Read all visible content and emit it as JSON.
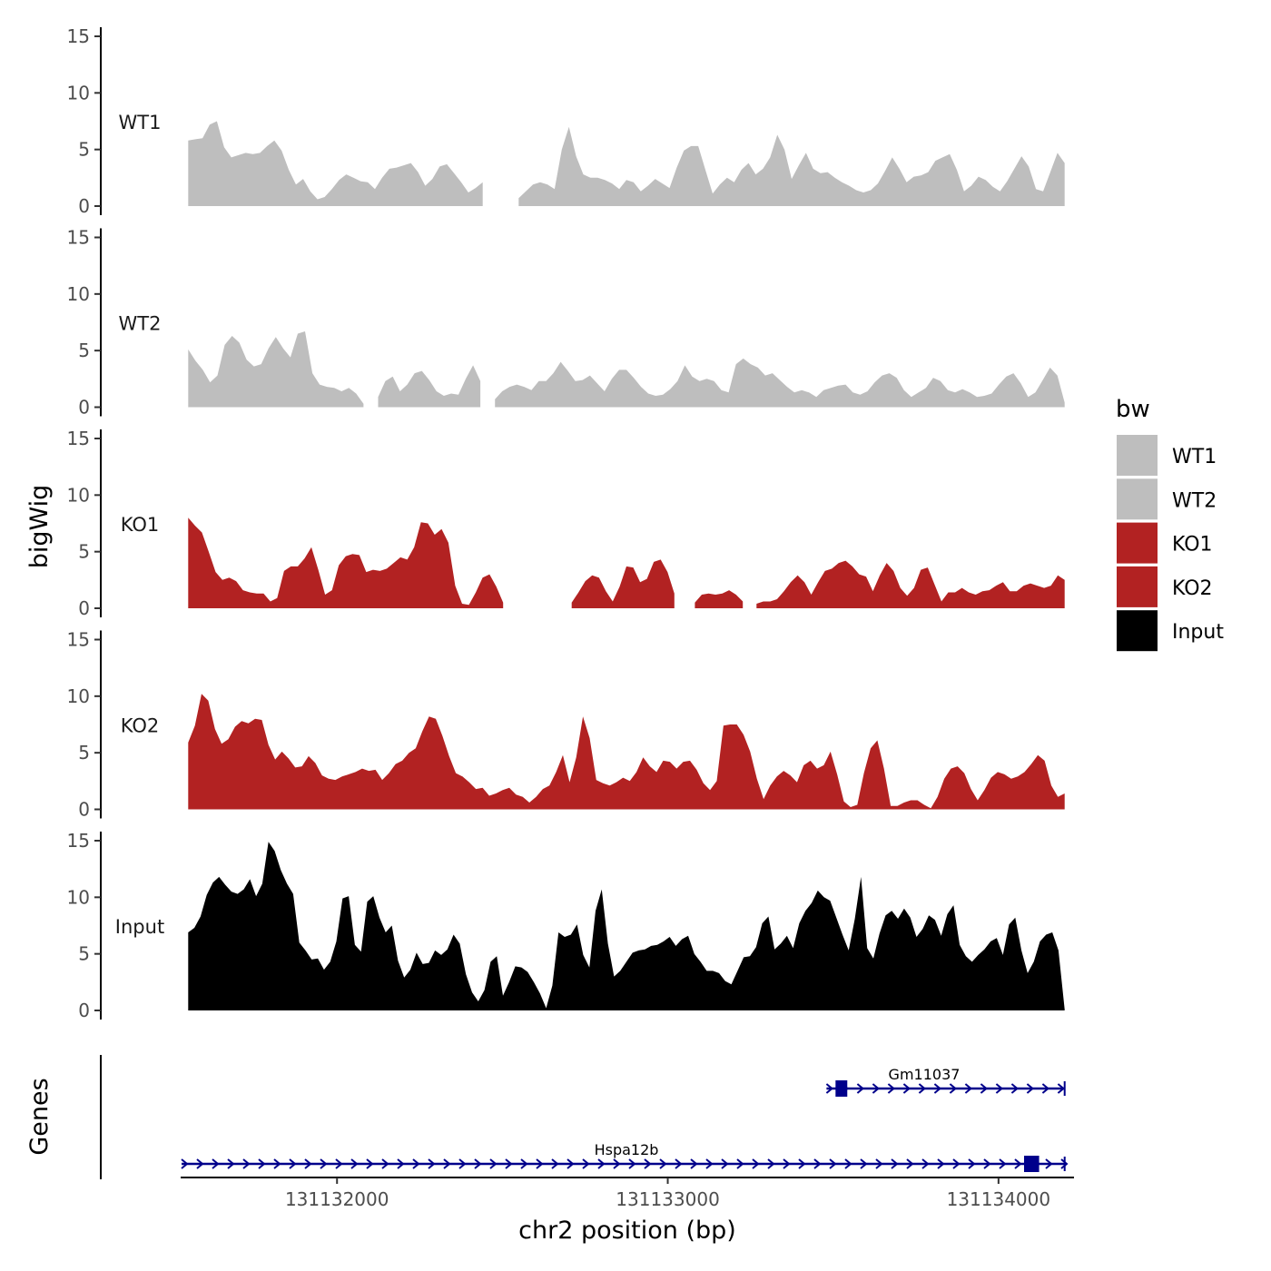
{
  "chart_data": {
    "type": "area",
    "xlabel": "chr2 position (bp)",
    "ylabel": "bigWig",
    "genes_label": "Genes",
    "xlim": [
      131131530,
      131134220
    ],
    "x_ticks": [
      131132000,
      131133000,
      131134000
    ],
    "x_tick_labels": [
      "131132000",
      "131133000",
      "131134000"
    ],
    "ylim": [
      0,
      15
    ],
    "y_ticks": [
      0,
      5,
      10,
      15
    ],
    "y_tick_labels": [
      "0",
      "5",
      "10",
      "15"
    ],
    "x_start": 131131550,
    "x_end": 131134200,
    "legend": {
      "title": "bw",
      "entries": [
        {
          "label": "WT1",
          "color": "#bebebe"
        },
        {
          "label": "WT2",
          "color": "#bebebe"
        },
        {
          "label": "KO1",
          "color": "#b22222"
        },
        {
          "label": "KO2",
          "color": "#b22222"
        },
        {
          "label": "Input",
          "color": "#000000"
        }
      ]
    },
    "series": [
      {
        "name": "WT1",
        "color": "#bebebe",
        "values": [
          5.8,
          5.9,
          6.0,
          7.2,
          7.5,
          5.2,
          4.3,
          4.5,
          4.7,
          4.6,
          4.7,
          5.3,
          5.8,
          4.9,
          3.2,
          1.9,
          2.4,
          1.3,
          0.6,
          0.8,
          1.5,
          2.3,
          2.8,
          2.5,
          2.2,
          2.1,
          1.5,
          2.5,
          3.3,
          3.4,
          3.6,
          3.8,
          3.0,
          1.8,
          2.4,
          3.5,
          3.7,
          2.9,
          2.1,
          1.2,
          1.6,
          2.1,
          null,
          null,
          null,
          null,
          0.7,
          1.3,
          1.9,
          2.1,
          1.9,
          1.5,
          5.0,
          7.0,
          4.4,
          2.8,
          2.5,
          2.5,
          2.3,
          2.0,
          1.5,
          2.3,
          2.1,
          1.3,
          1.8,
          2.4,
          2.0,
          1.6,
          3.4,
          4.9,
          5.3,
          5.3,
          3.2,
          1.1,
          1.9,
          2.5,
          2.1,
          3.2,
          3.8,
          2.8,
          3.3,
          4.3,
          6.3,
          5.0,
          2.4,
          3.6,
          4.7,
          3.3,
          2.9,
          3.0,
          2.5,
          2.1,
          1.8,
          1.4,
          1.2,
          1.4,
          2.0,
          3.1,
          4.3,
          3.3,
          2.1,
          2.6,
          2.7,
          3.0,
          4.0,
          4.3,
          4.6,
          3.2,
          1.3,
          1.8,
          2.6,
          2.3,
          1.7,
          1.3,
          2.2,
          3.3,
          4.4,
          3.5,
          1.5,
          1.3,
          3.0,
          4.7,
          3.8
        ]
      },
      {
        "name": "WT2",
        "color": "#bebebe",
        "values": [
          5.1,
          4.1,
          3.3,
          2.2,
          2.8,
          5.5,
          6.3,
          5.7,
          4.2,
          3.6,
          3.8,
          5.2,
          6.2,
          5.2,
          4.4,
          6.5,
          6.7,
          3.0,
          2.0,
          1.8,
          1.7,
          1.4,
          1.7,
          1.2,
          0.3,
          null,
          0.9,
          2.3,
          2.7,
          1.4,
          2.0,
          3.0,
          3.2,
          2.4,
          1.4,
          1.0,
          1.2,
          1.1,
          2.5,
          3.7,
          2.3,
          null,
          0.7,
          1.4,
          1.8,
          2.0,
          1.8,
          1.5,
          2.3,
          2.3,
          3.0,
          4.0,
          3.2,
          2.3,
          2.4,
          2.8,
          2.1,
          1.4,
          2.5,
          3.3,
          3.3,
          2.6,
          1.8,
          1.2,
          1.0,
          1.1,
          1.6,
          2.3,
          3.7,
          2.7,
          2.3,
          2.5,
          2.3,
          1.5,
          1.3,
          3.8,
          4.3,
          3.8,
          3.5,
          2.8,
          3.0,
          2.4,
          1.8,
          1.3,
          1.5,
          1.3,
          0.9,
          1.5,
          1.7,
          1.9,
          2.0,
          1.3,
          1.1,
          1.4,
          2.2,
          2.8,
          3.0,
          2.6,
          1.5,
          0.9,
          1.3,
          1.7,
          2.6,
          2.3,
          1.5,
          1.3,
          1.6,
          1.3,
          0.9,
          1.0,
          1.2,
          2.0,
          2.7,
          3.0,
          2.1,
          0.9,
          1.3,
          2.4,
          3.5,
          2.8,
          0.4
        ]
      },
      {
        "name": "KO1",
        "color": "#b22222",
        "values": [
          8.0,
          7.3,
          6.7,
          5.0,
          3.2,
          2.5,
          2.7,
          2.4,
          1.6,
          1.4,
          1.3,
          1.3,
          0.6,
          0.9,
          3.3,
          3.7,
          3.7,
          4.4,
          5.4,
          3.4,
          1.2,
          1.6,
          3.8,
          4.6,
          4.8,
          4.7,
          3.2,
          3.4,
          3.3,
          3.5,
          4.0,
          4.5,
          4.3,
          5.4,
          7.6,
          7.5,
          6.5,
          7.0,
          5.8,
          2.0,
          0.4,
          0.3,
          1.4,
          2.7,
          3.0,
          1.9,
          0.5,
          null,
          null,
          null,
          null,
          null,
          null,
          null,
          null,
          null,
          0.5,
          1.4,
          2.4,
          2.9,
          2.7,
          1.5,
          0.6,
          1.9,
          3.7,
          3.6,
          2.3,
          2.6,
          4.1,
          4.3,
          3.2,
          1.3,
          null,
          null,
          0.5,
          1.2,
          1.3,
          1.2,
          1.3,
          1.6,
          1.2,
          0.6,
          null,
          0.4,
          0.6,
          0.6,
          0.8,
          1.5,
          2.3,
          2.9,
          2.3,
          1.2,
          2.3,
          3.3,
          3.5,
          4.0,
          4.2,
          3.7,
          3.0,
          2.8,
          1.5,
          2.9,
          4.0,
          3.3,
          1.8,
          1.1,
          1.8,
          3.4,
          3.6,
          2.1,
          0.6,
          1.4,
          1.4,
          1.8,
          1.4,
          1.2,
          1.5,
          1.6,
          2.0,
          2.3,
          1.5,
          1.5,
          2.0,
          2.2,
          2.0,
          1.8,
          2.0,
          2.9,
          2.5
        ]
      },
      {
        "name": "KO2",
        "color": "#b22222",
        "values": [
          5.9,
          7.4,
          10.2,
          9.6,
          7.1,
          5.8,
          6.2,
          7.3,
          7.8,
          7.6,
          8.0,
          7.9,
          5.7,
          4.4,
          5.1,
          4.5,
          3.7,
          3.8,
          4.7,
          4.1,
          3.0,
          2.7,
          2.6,
          2.9,
          3.1,
          3.3,
          3.6,
          3.4,
          3.5,
          2.6,
          3.2,
          4.0,
          4.3,
          5.0,
          5.4,
          6.9,
          8.2,
          8.0,
          6.5,
          4.7,
          3.2,
          2.9,
          2.4,
          1.8,
          1.9,
          1.2,
          1.4,
          1.7,
          1.9,
          1.3,
          1.1,
          0.6,
          1.1,
          1.8,
          2.1,
          3.3,
          4.8,
          2.4,
          4.6,
          8.2,
          6.3,
          2.6,
          2.3,
          2.1,
          2.4,
          2.8,
          2.5,
          3.3,
          4.6,
          3.8,
          3.3,
          4.3,
          4.2,
          3.6,
          4.2,
          4.3,
          3.5,
          2.3,
          1.7,
          2.5,
          7.4,
          7.5,
          7.5,
          6.6,
          5.1,
          2.7,
          0.9,
          2.1,
          2.9,
          3.4,
          3.0,
          2.4,
          3.9,
          4.3,
          3.6,
          3.9,
          5.1,
          3.1,
          0.7,
          0.2,
          0.4,
          3.2,
          5.4,
          6.1,
          3.6,
          0.3,
          0.3,
          0.6,
          0.8,
          0.8,
          0.4,
          0.1,
          1.1,
          2.7,
          3.6,
          3.8,
          3.2,
          1.8,
          0.8,
          1.7,
          2.8,
          3.3,
          3.1,
          2.7,
          2.9,
          3.3,
          4.0,
          4.8,
          4.3,
          2.1,
          1.1,
          1.4
        ]
      },
      {
        "name": "Input",
        "color": "#000000",
        "values": [
          6.9,
          7.3,
          8.3,
          10.2,
          11.3,
          11.8,
          11.1,
          10.5,
          10.3,
          10.7,
          11.6,
          10.1,
          11.2,
          14.9,
          14.1,
          12.4,
          11.2,
          10.3,
          6.0,
          5.3,
          4.5,
          4.6,
          3.6,
          4.3,
          6.1,
          9.9,
          10.1,
          5.8,
          5.2,
          9.6,
          10.1,
          8.2,
          6.9,
          7.5,
          4.4,
          2.9,
          3.6,
          5.1,
          4.1,
          4.2,
          5.3,
          4.9,
          5.4,
          6.7,
          5.9,
          3.2,
          1.6,
          0.8,
          1.8,
          4.3,
          4.8,
          1.3,
          2.5,
          3.9,
          3.8,
          3.4,
          2.5,
          1.5,
          0.2,
          2.2,
          6.9,
          6.5,
          6.7,
          7.6,
          4.9,
          3.8,
          8.8,
          10.7,
          5.9,
          3.0,
          3.5,
          4.3,
          5.1,
          5.3,
          5.4,
          5.7,
          5.8,
          6.1,
          6.5,
          5.7,
          6.3,
          6.6,
          5.0,
          4.3,
          3.5,
          3.5,
          3.3,
          2.6,
          2.3,
          3.5,
          4.7,
          4.8,
          5.6,
          7.7,
          8.3,
          5.4,
          5.9,
          6.6,
          5.5,
          7.7,
          8.8,
          9.5,
          10.6,
          10.0,
          9.7,
          8.2,
          6.7,
          5.3,
          8.1,
          11.8,
          5.5,
          4.6,
          6.8,
          8.4,
          8.8,
          8.1,
          9.0,
          8.2,
          6.5,
          7.2,
          8.4,
          8.0,
          6.6,
          8.5,
          9.3,
          5.8,
          4.8,
          4.3,
          4.9,
          5.4,
          6.1,
          6.4,
          4.9,
          7.6,
          8.2,
          5.3,
          3.3,
          4.3,
          6.1,
          6.7,
          6.9,
          5.3,
          0.1
        ]
      }
    ],
    "genes": [
      {
        "name": "Gm11037",
        "start": 131133480,
        "end": 131134200,
        "strand": "+",
        "exons": [
          131133510,
          131133540
        ]
      },
      {
        "name": "Hspa12b",
        "start": 131131530,
        "end": 131134200,
        "strand": "+",
        "exons": [
          131134080,
          131134120
        ]
      }
    ]
  }
}
